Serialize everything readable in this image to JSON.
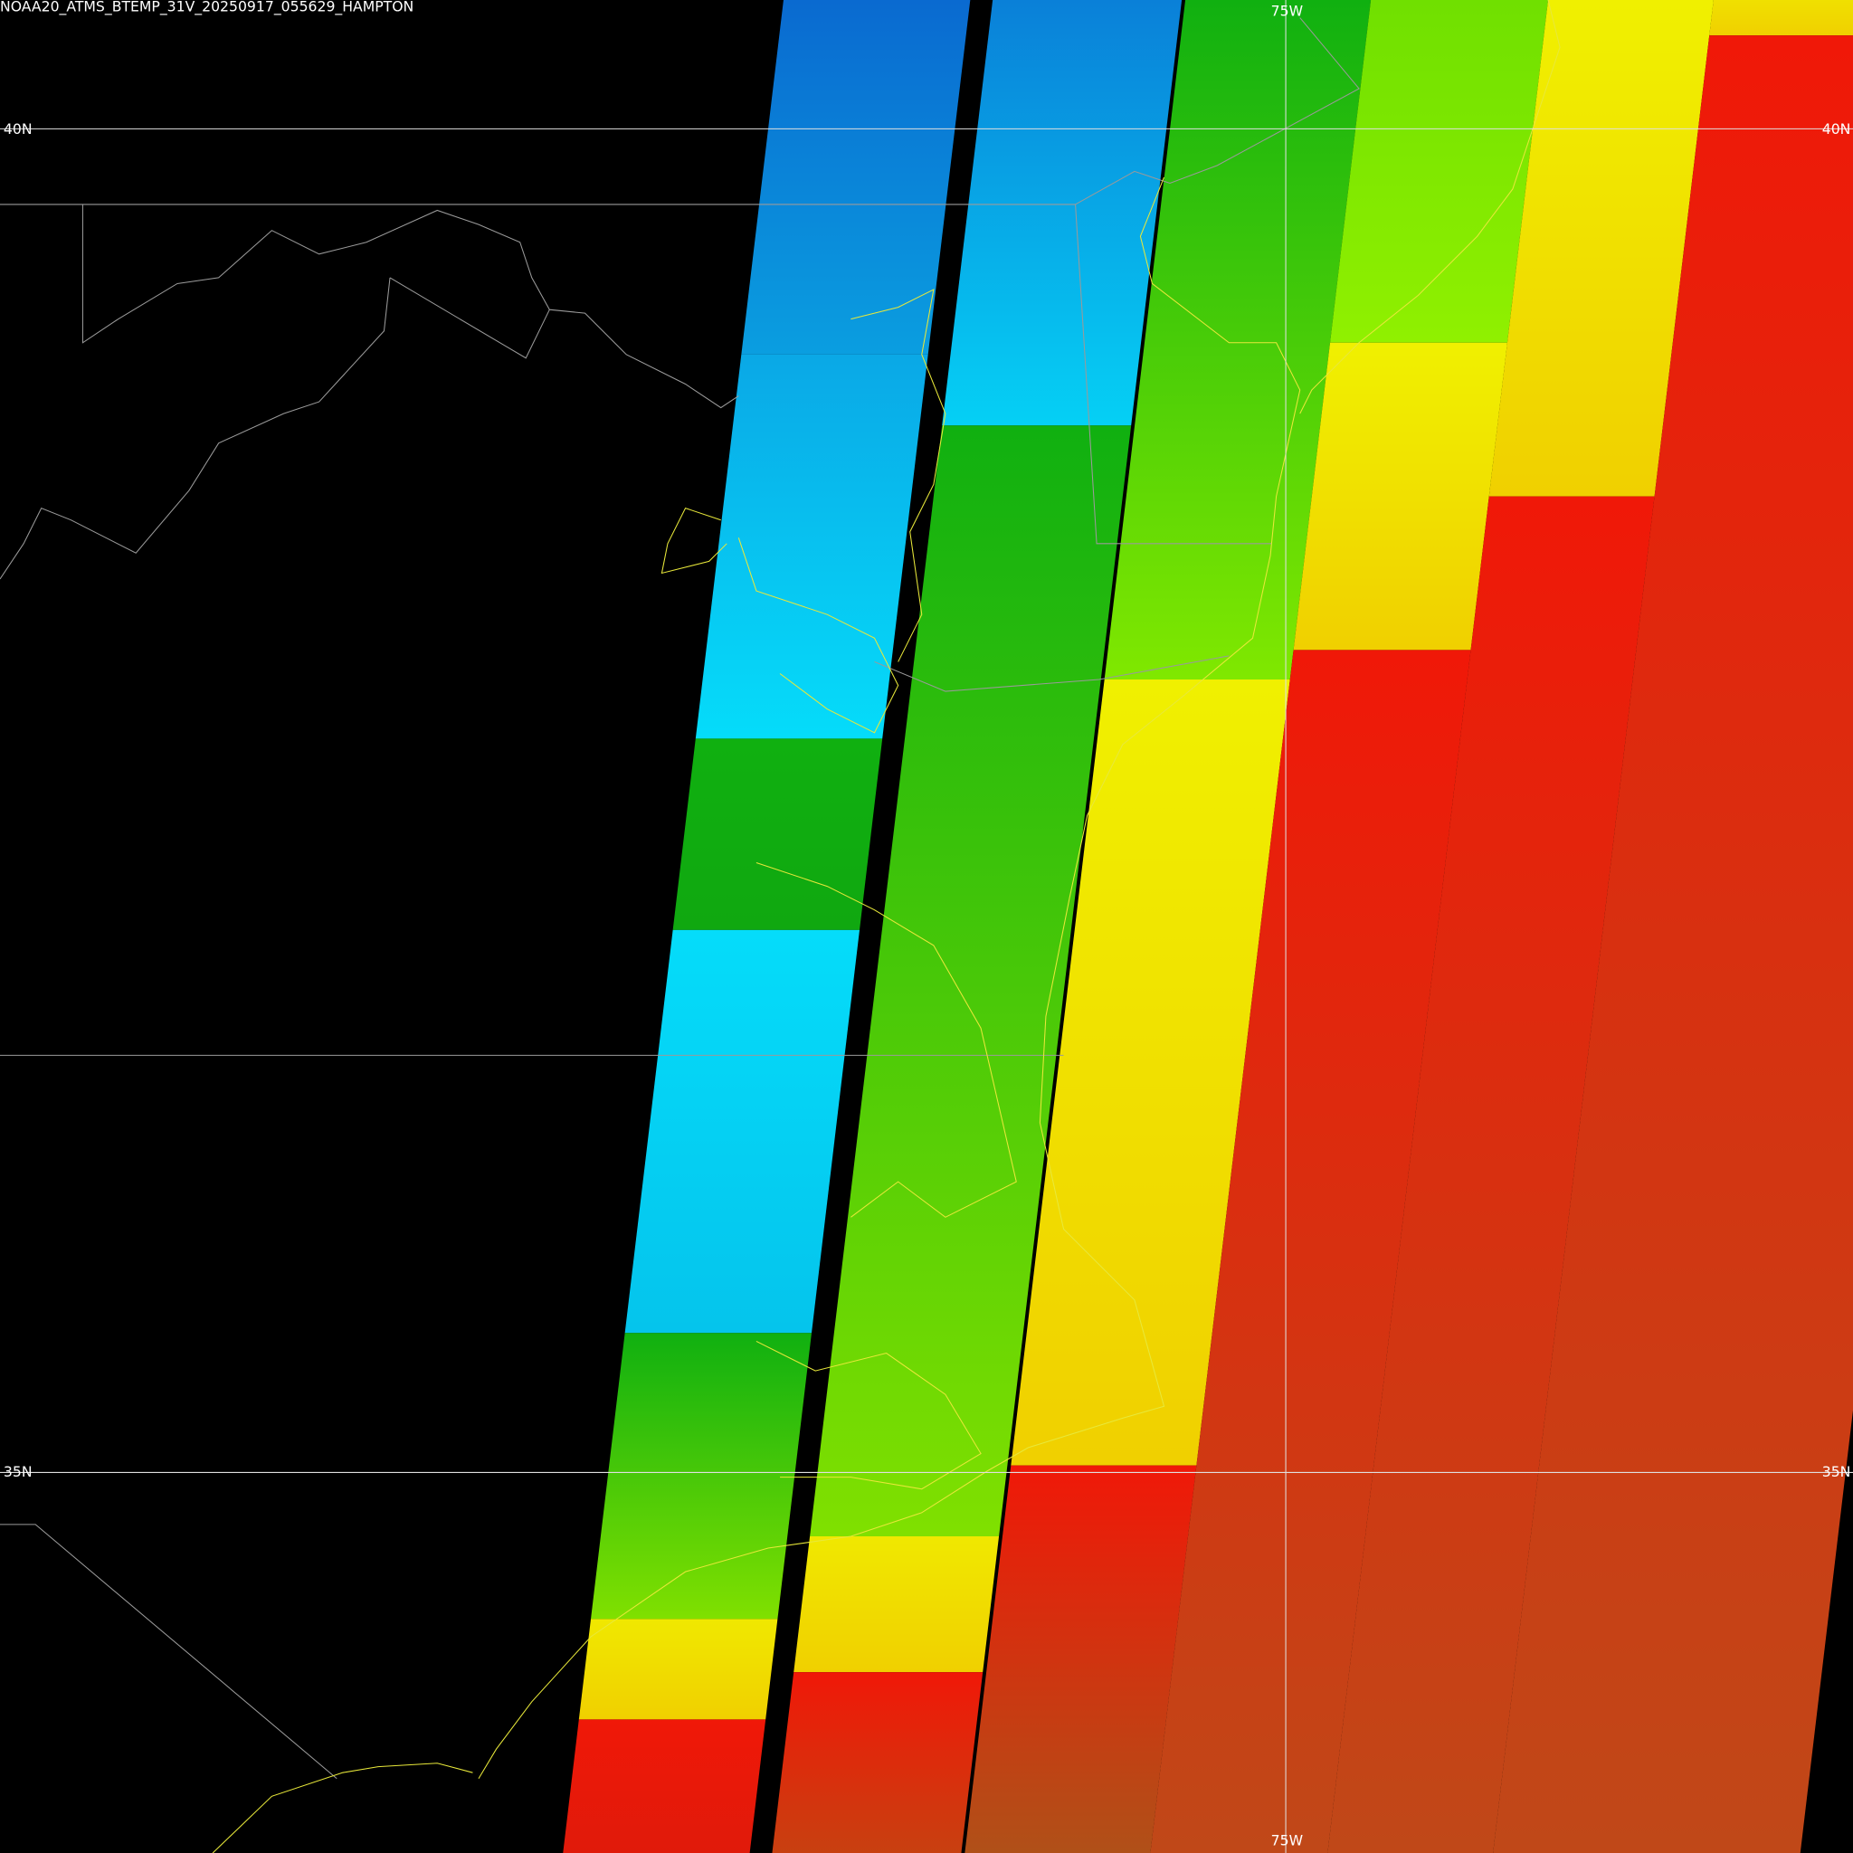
{
  "title": "NOAA20_ATMS_BTEMP_31V_20250917_055629_HAMPTON",
  "latitude_lines": [
    {
      "label": "40N"
    },
    {
      "label": "35N"
    }
  ],
  "longitude_lines": [
    {
      "label": "75W"
    }
  ]
}
